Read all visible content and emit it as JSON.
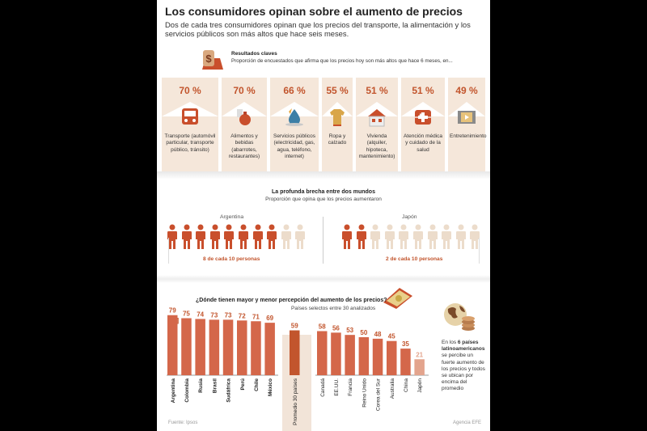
{
  "header": {
    "title": "Los consumidores opinan sobre el aumento de precios",
    "subtitle": "Dos de cada tres consumidores opinan que los precios del transporte, la alimentación y los servicios públicos son más altos que hace seis meses."
  },
  "key_results": {
    "title": "Resultados claves",
    "subtitle": "Proporción de encuestados que afirma que los precios hoy son más altos que hace 6 meses, en...",
    "icon": "money-bag-icon",
    "cards": [
      {
        "pct": "70 %",
        "label": "Transporte (automóvil particular, transporte público, tránsito)",
        "icon": "bus-icon"
      },
      {
        "pct": "70 %",
        "label": "Alimentos y bebidas (abarrotes, restaurantes)",
        "icon": "food-icon"
      },
      {
        "pct": "66 %",
        "label": "Servicios públicos (electricidad, gas, agua, teléfono, internet)",
        "icon": "utilities-icon"
      },
      {
        "pct": "55 %",
        "label": "Ropa y calzado",
        "icon": "shirt-icon"
      },
      {
        "pct": "51 %",
        "label": "Vivienda (alquiler, hipoteca, mantenimiento)",
        "icon": "house-icon"
      },
      {
        "pct": "51 %",
        "label": "Atención médica y cuidado de la salud",
        "icon": "medical-icon"
      },
      {
        "pct": "49 %",
        "label": "Entretenimiento",
        "icon": "film-icon"
      }
    ]
  },
  "gap": {
    "title": "La profunda brecha entre dos mundos",
    "subtitle": "Proporción que opina que los precios aumentaron",
    "left": {
      "country": "Argentina",
      "filled": 8,
      "total": 10,
      "caption_num": "8",
      "caption_text": "de cada 10 personas"
    },
    "right": {
      "country": "Japón",
      "filled": 2,
      "total": 10,
      "caption_num": "2",
      "caption_text": "de cada 10 personas"
    }
  },
  "bars": {
    "title": "¿Dónde tienen mayor y menor percepción del aumento de los precios?",
    "subtitle": "Países selectos entre 30 analizados",
    "unit": "[%]",
    "icon": "money-hand-icon"
  },
  "side": {
    "icon": "globe-coins-icon",
    "text_before": "En los ",
    "text_bold": "6 países latinoamericanos",
    "text_after": " se percibe un fuerte aumento de los precios y todos se ubican por encima del promedio"
  },
  "footer": {
    "source": "Fuente: Ipsos",
    "agency": "Agencia EFE"
  },
  "colors": {
    "accent": "#c2552d",
    "bar": "#d4674a",
    "bar_light": "#e3a48d",
    "card_bg": "#f5e7da",
    "person_filled": "#c94f2c",
    "person_empty": "#ecdccb"
  },
  "chart_data": {
    "type": "bar",
    "title": "¿Dónde tienen mayor y menor percepción del aumento de los precios?",
    "subtitle": "Países selectos entre 30 analizados",
    "ylabel": "[%]",
    "ylim": [
      0,
      100
    ],
    "groups": [
      {
        "name": "latam",
        "categories": [
          "Argentina",
          "Colombia",
          "Rusia",
          "Brasil",
          "Sudáfrica",
          "Perú",
          "Chile",
          "México"
        ],
        "values": [
          79,
          75,
          74,
          73,
          73,
          72,
          71,
          69
        ]
      },
      {
        "name": "average",
        "categories": [
          "Promedio 30 países"
        ],
        "values": [
          59
        ]
      },
      {
        "name": "others",
        "categories": [
          "Canadá",
          "EE.UU.",
          "Francia",
          "Reino Unido",
          "Corea del Sur",
          "Australia",
          "China",
          "Japón"
        ],
        "values": [
          58,
          56,
          53,
          50,
          48,
          45,
          35,
          21
        ]
      }
    ]
  }
}
